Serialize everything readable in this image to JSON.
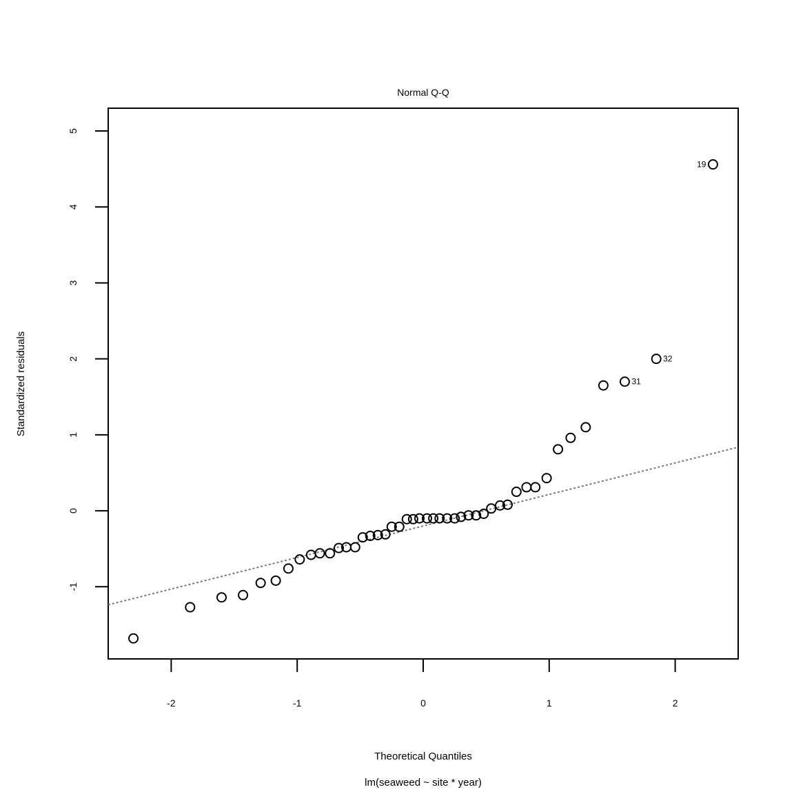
{
  "chart_data": {
    "type": "scatter",
    "title": "Normal Q-Q",
    "xlabel": "Theoretical Quantiles",
    "ylabel": "Standardized residuals",
    "subtitle": "lm(seaweed ~ site * year)",
    "xlim": [
      -2.5,
      2.5
    ],
    "ylim": [
      -1.95,
      5.3
    ],
    "x_ticks": [
      -2,
      -1,
      0,
      1,
      2
    ],
    "x_tick_labels": [
      "-2",
      "-1",
      "0",
      "1",
      "2"
    ],
    "y_ticks": [
      -1,
      0,
      1,
      2,
      3,
      4,
      5
    ],
    "y_tick_labels": [
      "-1",
      "0",
      "1",
      "2",
      "3",
      "4",
      "5"
    ],
    "grid": false,
    "points": [
      {
        "x": -2.3,
        "y": -1.68
      },
      {
        "x": -1.85,
        "y": -1.27
      },
      {
        "x": -1.6,
        "y": -1.14
      },
      {
        "x": -1.43,
        "y": -1.11
      },
      {
        "x": -1.29,
        "y": -0.95
      },
      {
        "x": -1.17,
        "y": -0.92
      },
      {
        "x": -1.07,
        "y": -0.76
      },
      {
        "x": -0.98,
        "y": -0.64
      },
      {
        "x": -0.89,
        "y": -0.58
      },
      {
        "x": -0.82,
        "y": -0.56
      },
      {
        "x": -0.74,
        "y": -0.56
      },
      {
        "x": -0.67,
        "y": -0.49
      },
      {
        "x": -0.61,
        "y": -0.48
      },
      {
        "x": -0.54,
        "y": -0.48
      },
      {
        "x": -0.48,
        "y": -0.35
      },
      {
        "x": -0.42,
        "y": -0.33
      },
      {
        "x": -0.36,
        "y": -0.32
      },
      {
        "x": -0.3,
        "y": -0.31
      },
      {
        "x": -0.25,
        "y": -0.21
      },
      {
        "x": -0.19,
        "y": -0.21
      },
      {
        "x": -0.13,
        "y": -0.11
      },
      {
        "x": -0.08,
        "y": -0.11
      },
      {
        "x": -0.03,
        "y": -0.1
      },
      {
        "x": 0.03,
        "y": -0.1
      },
      {
        "x": 0.08,
        "y": -0.1
      },
      {
        "x": 0.13,
        "y": -0.1
      },
      {
        "x": 0.19,
        "y": -0.1
      },
      {
        "x": 0.25,
        "y": -0.1
      },
      {
        "x": 0.3,
        "y": -0.08
      },
      {
        "x": 0.36,
        "y": -0.06
      },
      {
        "x": 0.42,
        "y": -0.06
      },
      {
        "x": 0.48,
        "y": -0.04
      },
      {
        "x": 0.54,
        "y": 0.03
      },
      {
        "x": 0.61,
        "y": 0.07
      },
      {
        "x": 0.67,
        "y": 0.08
      },
      {
        "x": 0.74,
        "y": 0.25
      },
      {
        "x": 0.82,
        "y": 0.31
      },
      {
        "x": 0.89,
        "y": 0.31
      },
      {
        "x": 0.98,
        "y": 0.43
      },
      {
        "x": 1.07,
        "y": 0.81
      },
      {
        "x": 1.17,
        "y": 0.96
      },
      {
        "x": 1.29,
        "y": 1.1
      },
      {
        "x": 1.43,
        "y": 1.65
      },
      {
        "x": 1.6,
        "y": 1.7
      },
      {
        "x": 1.85,
        "y": 2.0
      },
      {
        "x": 2.3,
        "y": 4.56
      }
    ],
    "point_labels": [
      {
        "text": "19",
        "x": 2.3,
        "y": 4.56,
        "side": "left"
      },
      {
        "text": "32",
        "x": 1.85,
        "y": 2.0,
        "side": "right"
      },
      {
        "text": "31",
        "x": 1.6,
        "y": 1.7,
        "side": "right"
      }
    ],
    "reference_line": {
      "intercept": -0.2,
      "slope": 0.415,
      "style": "dotted",
      "color": "#777777"
    },
    "marker": "open-circle",
    "colors": {
      "points": "#000000",
      "reference_line": "#777777",
      "axes": "#000000"
    }
  }
}
